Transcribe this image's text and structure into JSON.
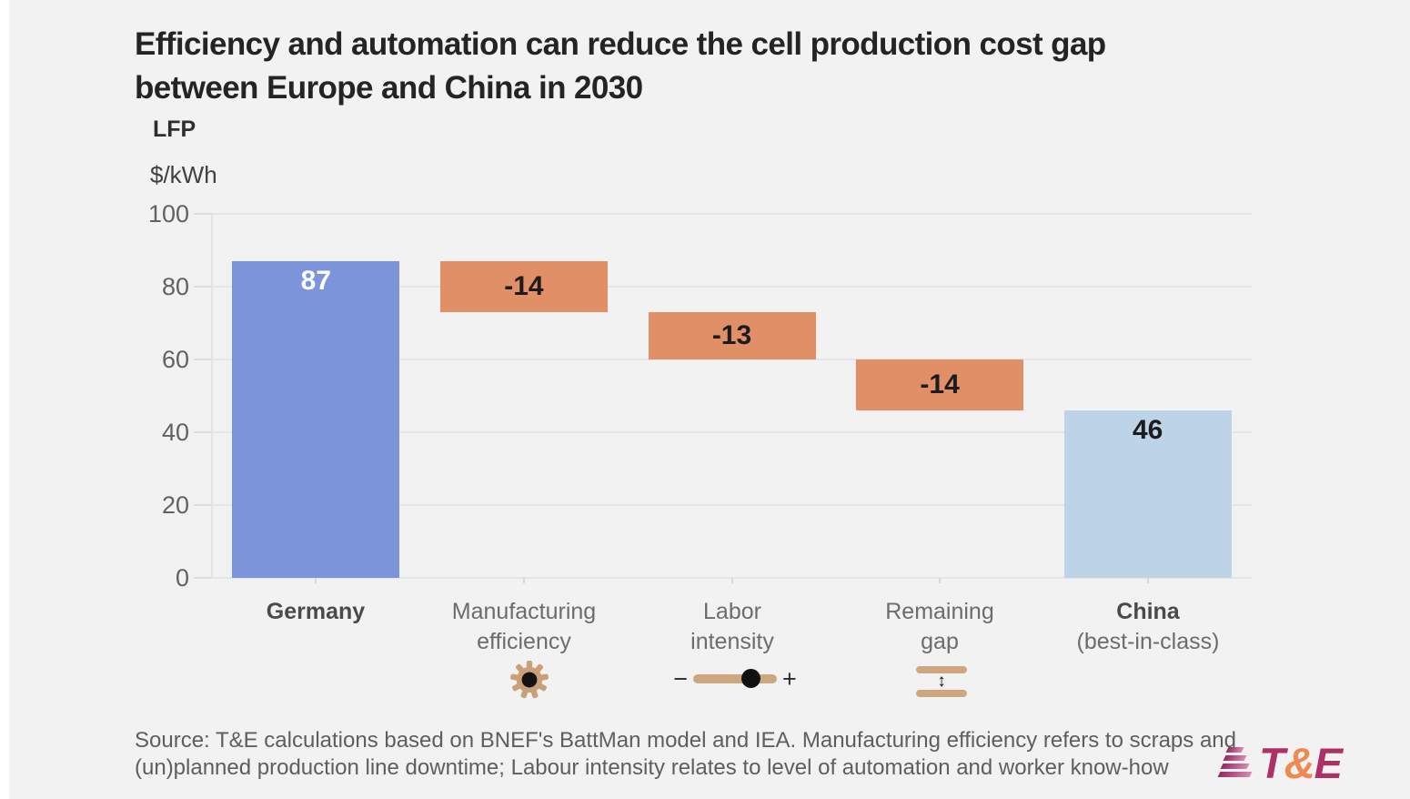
{
  "title": {
    "line1": "Efficiency and automation can reduce the cell production cost gap",
    "line2": "between Europe and China in 2030"
  },
  "chart_data": {
    "type": "bar",
    "subtype": "waterfall",
    "chemistry_label": "LFP",
    "unit_label": "$/kWh",
    "ylim": [
      0,
      100
    ],
    "yticks": [
      0,
      20,
      40,
      60,
      80,
      100
    ],
    "grid": true,
    "categories": [
      "Germany",
      "Manufacturing efficiency",
      "Labor intensity",
      "Remaining gap",
      "China (best-in-class)"
    ],
    "values": [
      87,
      -14,
      -13,
      -14,
      46
    ],
    "bars": [
      {
        "name": "Germany",
        "lines": [
          "Germany"
        ],
        "emphasis": true,
        "start": 0,
        "end": 87,
        "value_label": "87",
        "color_key": "blue",
        "value_color": "#ffffff",
        "value_pos": "top",
        "icon": null
      },
      {
        "name": "Manufacturing efficiency",
        "lines": [
          "Manufacturing",
          "efficiency"
        ],
        "emphasis": false,
        "start": 87,
        "end": 73,
        "value_label": "-14",
        "color_key": "orange",
        "value_color": "#1c1c1e",
        "value_pos": "center",
        "icon": "gear"
      },
      {
        "name": "Labor intensity",
        "lines": [
          "Labor",
          "intensity"
        ],
        "emphasis": false,
        "start": 73,
        "end": 60,
        "value_label": "-13",
        "color_key": "orange",
        "value_color": "#1c1c1e",
        "value_pos": "center",
        "icon": "slider"
      },
      {
        "name": "Remaining gap",
        "lines": [
          "Remaining",
          "gap"
        ],
        "emphasis": false,
        "start": 60,
        "end": 46,
        "value_label": "-14",
        "color_key": "orange",
        "value_color": "#1c1c1e",
        "value_pos": "center",
        "icon": "gap"
      },
      {
        "name": "China (best-in-class)",
        "lines": [
          "China",
          "(best-in-class)"
        ],
        "emphasis": true,
        "start": 0,
        "end": 46,
        "value_label": "46",
        "color_key": "lightblue",
        "value_color": "#1c1c1e",
        "value_pos": "top",
        "icon": null
      }
    ],
    "colors": {
      "blue": "#7c95da",
      "orange": "#e08f66",
      "lightblue": "#bdd4e8"
    }
  },
  "icons": {
    "minus": "−",
    "plus": "+",
    "vertical_arrows": "↕"
  },
  "source": {
    "text": "Source: T&E calculations based on BNEF's BattMan model and IEA. Manufacturing efficiency refers to scraps and (un)planned production line downtime; Labour intensity relates to level of automation and worker know-how"
  },
  "logo": {
    "t": "T",
    "amp": "&",
    "e": "E",
    "colors": {
      "magenta": "#ad3166",
      "orange": "#ee8950"
    }
  }
}
